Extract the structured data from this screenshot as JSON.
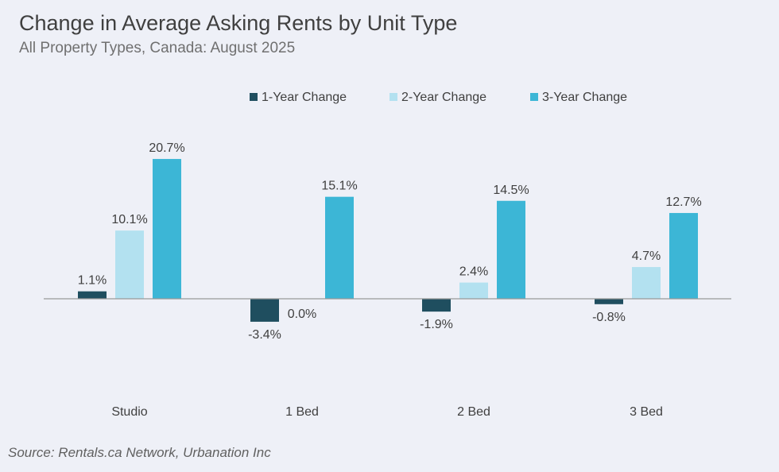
{
  "chart_data": {
    "type": "bar",
    "title": "Change in Average Asking Rents by Unit Type",
    "subtitle": "All Property Types, Canada: August 2025",
    "source": "Source: Rentals.ca Network, Urbanation Inc",
    "categories": [
      "Studio",
      "1 Bed",
      "2 Bed",
      "3 Bed"
    ],
    "series": [
      {
        "name": "1-Year Change",
        "color": "#1f4e5f",
        "values": [
          1.1,
          -3.4,
          -1.9,
          -0.8
        ],
        "labels": [
          "1.1%",
          "-3.4%",
          "-1.9%",
          "-0.8%"
        ]
      },
      {
        "name": "2-Year Change",
        "color": "#b3e1f0",
        "values": [
          10.1,
          0.0,
          2.4,
          4.7
        ],
        "labels": [
          "10.1%",
          "0.0%",
          "2.4%",
          "4.7%"
        ]
      },
      {
        "name": "3-Year Change",
        "color": "#3cb6d6",
        "values": [
          20.7,
          15.1,
          14.5,
          12.7
        ],
        "labels": [
          "20.7%",
          "15.1%",
          "14.5%",
          "12.7%"
        ]
      }
    ],
    "legend_position": "top-center",
    "grid": false,
    "ylim": [
      -4,
      22
    ]
  }
}
